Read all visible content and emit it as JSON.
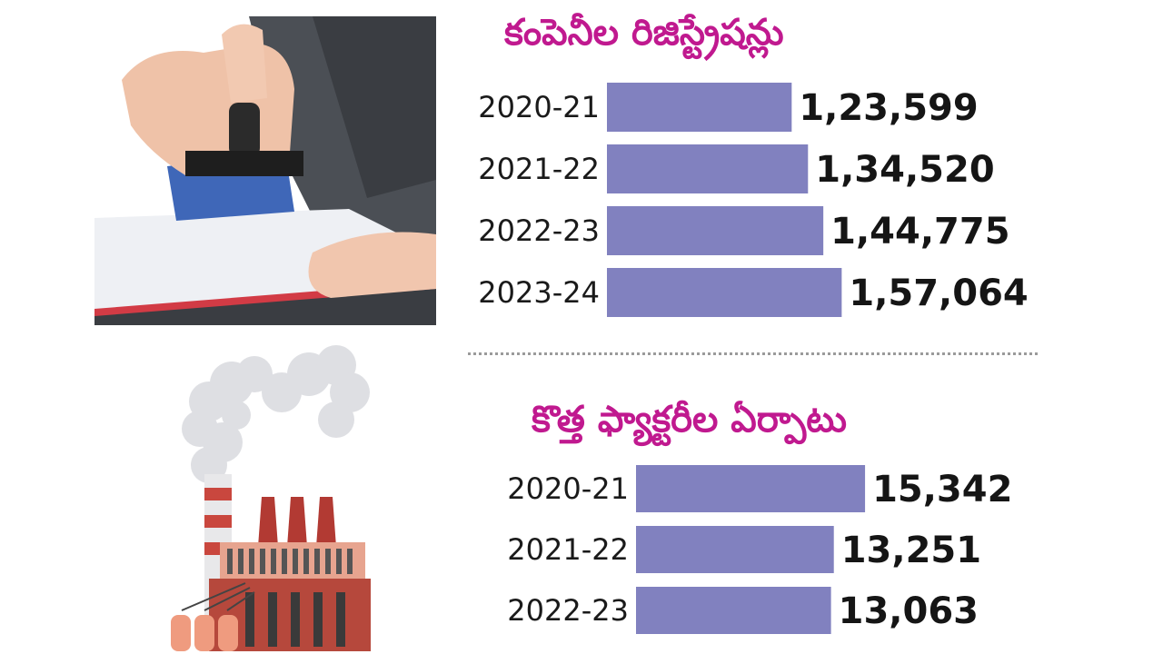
{
  "colors": {
    "title": "#c0198f",
    "bar": "#8181bf",
    "value_text": "#151515",
    "divider": "#9a9a9a"
  },
  "illustrations": {
    "top": "hand-stamping-document-photo",
    "bottom": "factory-with-smoke-illustration"
  },
  "chart_data": [
    {
      "type": "bar",
      "orientation": "horizontal",
      "title": "కంపెనీల రిజిస్ట్రేషన్లు",
      "categories": [
        "2020-21",
        "2021-22",
        "2022-23",
        "2023-24"
      ],
      "values": [
        123599,
        134520,
        144775,
        157064
      ],
      "value_labels": [
        "1,23,599",
        "1,34,520",
        "1,44,775",
        "1,57,064"
      ],
      "xlabel": "",
      "ylabel": "",
      "grid": false,
      "legend": "none"
    },
    {
      "type": "bar",
      "orientation": "horizontal",
      "title": "కొత్త ఫ్యాక్టరీల ఏర్పాటు",
      "categories": [
        "2020-21",
        "2021-22",
        "2022-23"
      ],
      "values": [
        15342,
        13251,
        13063
      ],
      "value_labels": [
        "15,342",
        "13,251",
        "13,063"
      ],
      "xlabel": "",
      "ylabel": "",
      "grid": false,
      "legend": "none"
    }
  ]
}
